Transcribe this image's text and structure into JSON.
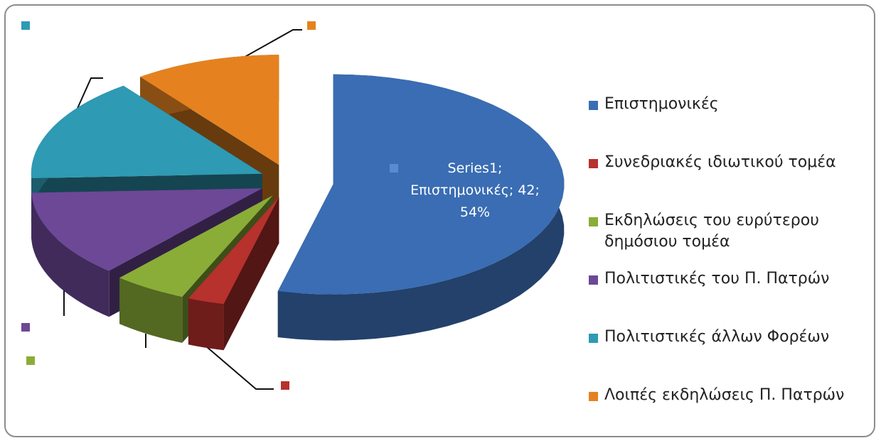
{
  "chart_data": {
    "type": "pie3d",
    "series": [
      {
        "name": "Series1",
        "values": [
          42,
          2,
          4,
          10,
          12,
          8
        ]
      }
    ],
    "categories": [
      "Επιστημονικές",
      "Συνεδριακές ιδιωτικού τομέα",
      "Εκδηλώσεις του ευρύτερου δημόσιου τομέα",
      "Πολιτιστικές του Π. Πατρών",
      "Πολιτιστικές άλλων Φορέων",
      "Λοιπές εκδηλώσεις Π. Πατρών"
    ],
    "colors": [
      "#3a6db3",
      "#b7312d",
      "#8aad37",
      "#6c4897",
      "#2e9ab3",
      "#e5821f"
    ],
    "data_label_lines": [
      "Series1;",
      "Επιστημονικές; 42;",
      "54%"
    ],
    "legend": "right"
  }
}
